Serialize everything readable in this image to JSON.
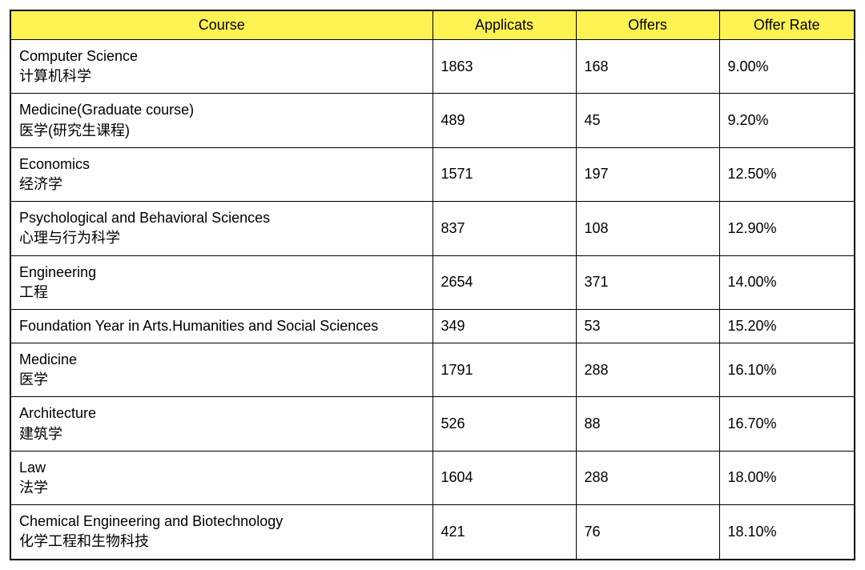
{
  "table": {
    "type": "table",
    "header_bg_color": "#fef352",
    "border_color": "#000000",
    "background_color": "#ffffff",
    "text_color": "#000000",
    "font_size_pt": 14,
    "header_font_weight": "normal",
    "columns": [
      {
        "key": "course",
        "label": "Course",
        "width_pct": 50,
        "align": "center"
      },
      {
        "key": "applicants",
        "label": "Applicats",
        "width_pct": 17,
        "align": "center"
      },
      {
        "key": "offers",
        "label": "Offers",
        "width_pct": 17,
        "align": "center"
      },
      {
        "key": "offer_rate",
        "label": "Offer Rate",
        "width_pct": 16,
        "align": "center"
      }
    ],
    "rows": [
      {
        "course_en": "Computer Science",
        "course_zh": "计算机科学",
        "applicants": "1863",
        "offers": "168",
        "offer_rate": "9.00%"
      },
      {
        "course_en": "Medicine(Graduate course)",
        "course_zh": "医学(研究生课程)",
        "applicants": "489",
        "offers": "45",
        "offer_rate": "9.20%"
      },
      {
        "course_en": "Economics",
        "course_zh": "经济学",
        "applicants": "1571",
        "offers": "197",
        "offer_rate": "12.50%"
      },
      {
        "course_en": "Psychological and Behavioral Sciences",
        "course_zh": "心理与行为科学",
        "applicants": "837",
        "offers": "108",
        "offer_rate": "12.90%"
      },
      {
        "course_en": "Engineering",
        "course_zh": "工程",
        "applicants": "2654",
        "offers": "371",
        "offer_rate": "14.00%"
      },
      {
        "course_en": "Foundation Year in Arts.Humanities and Social Sciences",
        "course_zh": "",
        "applicants": "349",
        "offers": "53",
        "offer_rate": "15.20%"
      },
      {
        "course_en": "Medicine",
        "course_zh": "医学",
        "applicants": "1791",
        "offers": "288",
        "offer_rate": "16.10%"
      },
      {
        "course_en": "Architecture",
        "course_zh": "建筑学",
        "applicants": "526",
        "offers": "88",
        "offer_rate": "16.70%"
      },
      {
        "course_en": "Law",
        "course_zh": "法学",
        "applicants": "1604",
        "offers": "288",
        "offer_rate": "18.00%"
      },
      {
        "course_en": "Chemical Engineering and Biotechnology",
        "course_zh": "化学工程和生物科技",
        "applicants": "421",
        "offers": "76",
        "offer_rate": "18.10%"
      }
    ]
  }
}
